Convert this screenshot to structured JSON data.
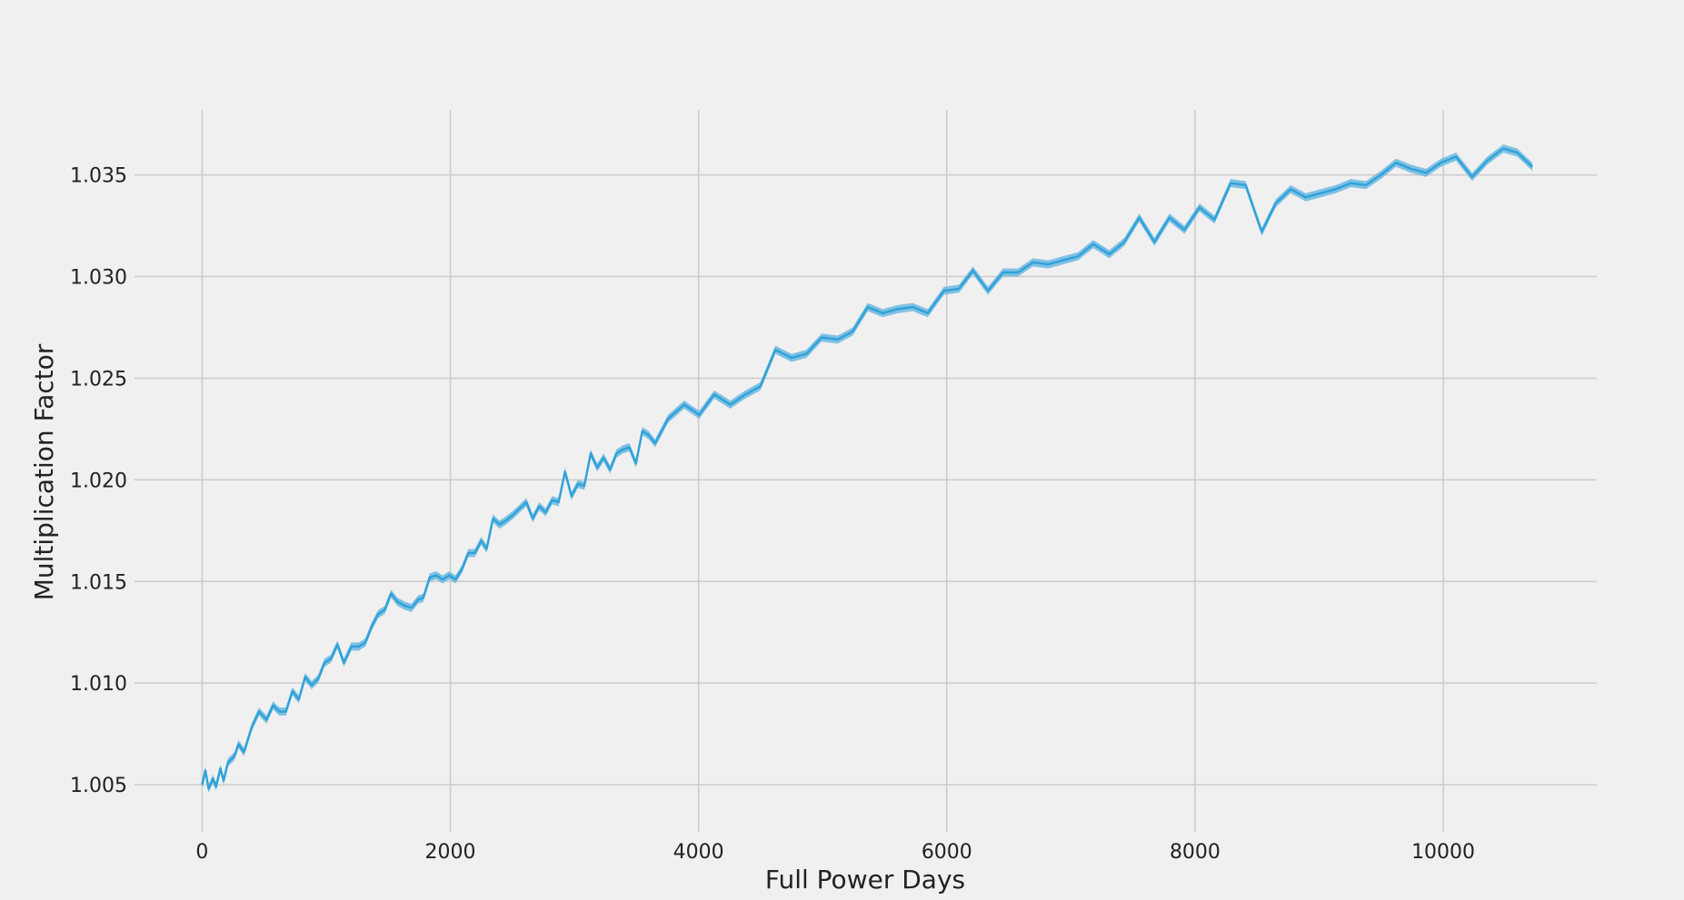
{
  "chart_data": {
    "type": "line",
    "xlabel": "Full Power Days",
    "ylabel": "Multiplication Factor",
    "xlim": [
      -545,
      11237
    ],
    "ylim": [
      1.00268,
      1.0382
    ],
    "xticks": [
      0,
      2000,
      4000,
      6000,
      8000,
      10000
    ],
    "yticks": [
      1.005,
      {
        "value": 1.01,
        "label": "1.010"
      },
      1.015,
      {
        "value": 1.02,
        "label": "1.020"
      },
      1.025,
      {
        "value": 1.03,
        "label": "1.030"
      },
      1.035
    ],
    "grid": true,
    "x": [
      0,
      26,
      52,
      87,
      112,
      147,
      173,
      208,
      260,
      294,
      337,
      398,
      458,
      519,
      571,
      623,
      675,
      727,
      779,
      830,
      882,
      934,
      986,
      1038,
      1090,
      1142,
      1202,
      1263,
      1315,
      1367,
      1419,
      1471,
      1522,
      1574,
      1635,
      1687,
      1739,
      1782,
      1834,
      1886,
      1938,
      1990,
      2041,
      2093,
      2145,
      2197,
      2249,
      2292,
      2344,
      2396,
      2448,
      2509,
      2560,
      2612,
      2664,
      2716,
      2768,
      2820,
      2872,
      2924,
      2976,
      3028,
      3079,
      3131,
      3183,
      3235,
      3287,
      3339,
      3391,
      3443,
      3495,
      3547,
      3598,
      3650,
      3754,
      3884,
      4005,
      4126,
      4256,
      4377,
      4498,
      4619,
      4749,
      4870,
      4991,
      5121,
      5242,
      5363,
      5484,
      5605,
      5726,
      5847,
      5977,
      6098,
      6211,
      6332,
      6453,
      6574,
      6695,
      6816,
      6937,
      7058,
      7180,
      7309,
      7430,
      7551,
      7673,
      7794,
      7915,
      8036,
      8157,
      8287,
      8408,
      8538,
      8650,
      8771,
      8892,
      9013,
      9134,
      9256,
      9377,
      9498,
      9619,
      9740,
      9861,
      9982,
      10103,
      10233,
      10354,
      10484,
      10597,
      10718
    ],
    "series": [
      {
        "color": "#30a2da",
        "band_color": "#6cb8e0",
        "error": 0.0002,
        "values": [
          1.005,
          1.0057,
          1.0048,
          1.0053,
          1.0049,
          1.0058,
          1.0052,
          1.0061,
          1.0064,
          1.007,
          1.0066,
          1.0078,
          1.0086,
          1.0082,
          1.0089,
          1.0086,
          1.0086,
          1.0096,
          1.0092,
          1.0103,
          1.0099,
          1.0102,
          1.011,
          1.0112,
          1.0119,
          1.011,
          1.0118,
          1.0118,
          1.012,
          1.0128,
          1.0134,
          1.0136,
          1.0144,
          1.014,
          1.0138,
          1.0137,
          1.0141,
          1.0142,
          1.0152,
          1.0153,
          1.0151,
          1.0153,
          1.0151,
          1.0156,
          1.0164,
          1.0164,
          1.017,
          1.0166,
          1.0181,
          1.0178,
          1.018,
          1.0183,
          1.0186,
          1.0189,
          1.0181,
          1.0187,
          1.0184,
          1.019,
          1.0189,
          1.0204,
          1.0192,
          1.0198,
          1.0197,
          1.0213,
          1.0206,
          1.0211,
          1.0205,
          1.0213,
          1.0215,
          1.0216,
          1.0208,
          1.0224,
          1.0222,
          1.0218,
          1.023,
          1.0237,
          1.0232,
          1.0242,
          1.0237,
          1.0242,
          1.0246,
          1.0264,
          1.026,
          1.0262,
          1.027,
          1.0269,
          1.0273,
          1.0285,
          1.0282,
          1.0284,
          1.0285,
          1.0282,
          1.0293,
          1.0294,
          1.0303,
          1.0293,
          1.0302,
          1.0302,
          1.0307,
          1.0306,
          1.0308,
          1.031,
          1.0316,
          1.0311,
          1.0317,
          1.0329,
          1.0317,
          1.0329,
          1.0323,
          1.0334,
          1.0328,
          1.0346,
          1.0345,
          1.0322,
          1.0336,
          1.0343,
          1.0339,
          1.0341,
          1.0343,
          1.0346,
          1.0345,
          1.035,
          1.0356,
          1.0353,
          1.0351,
          1.0356,
          1.0359,
          1.0349,
          1.0357,
          1.0363,
          1.0361,
          1.0354
        ]
      }
    ]
  }
}
